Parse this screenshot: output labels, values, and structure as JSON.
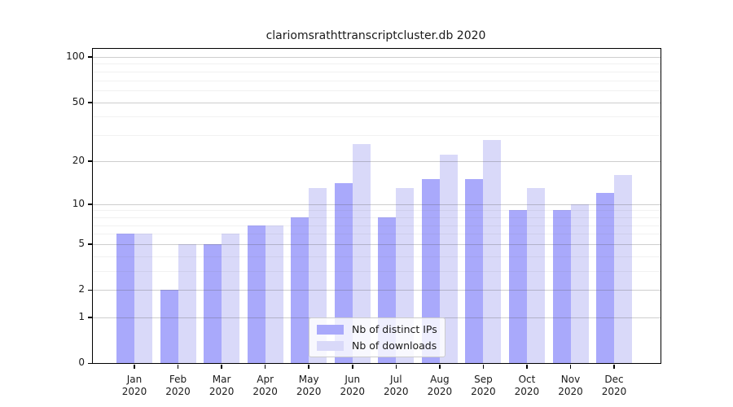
{
  "chart_data": {
    "type": "bar",
    "title": "clariomsrathttranscriptcluster.db 2020",
    "categories": [
      "Jan",
      "Feb",
      "Mar",
      "Apr",
      "May",
      "Jun",
      "Jul",
      "Aug",
      "Sep",
      "Oct",
      "Nov",
      "Dec"
    ],
    "year_label": "2020",
    "series": [
      {
        "name": "Nb of distinct IPs",
        "color": "#a9a9fb",
        "values": [
          6,
          2,
          5,
          7,
          8,
          14,
          8,
          15,
          15,
          9,
          9,
          12
        ]
      },
      {
        "name": "Nb of downloads",
        "color": "#d9d9f9",
        "values": [
          6,
          5,
          6,
          7,
          13,
          26,
          13,
          22,
          28,
          13,
          10,
          16
        ]
      }
    ],
    "xlabel": "",
    "ylabel": "",
    "yscale": "log1p",
    "ylim": [
      0,
      113
    ],
    "yticks": [
      0,
      1,
      2,
      5,
      10,
      20,
      50,
      100
    ],
    "minor_yticks": [
      3,
      4,
      6,
      7,
      8,
      9,
      30,
      40,
      60,
      70,
      80,
      90
    ],
    "grid": "on",
    "legend_position": "lower-center-inside"
  },
  "legend": {
    "items": [
      {
        "label": "Nb of distinct IPs",
        "color": "#a9a9fb"
      },
      {
        "label": "Nb of downloads",
        "color": "#d9d9f9"
      }
    ]
  }
}
